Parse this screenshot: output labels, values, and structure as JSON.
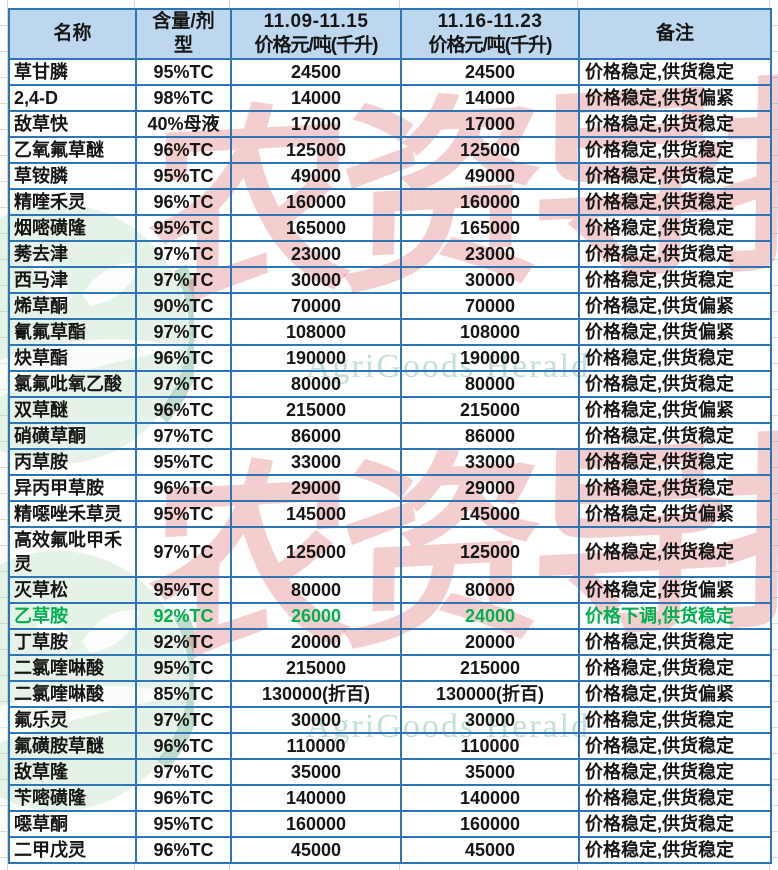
{
  "table": {
    "headers": {
      "name": "名称",
      "spec": "含量/剂型",
      "week1": {
        "period": "11.09-11.15",
        "unit": "价格元/吨(千升)"
      },
      "week2": {
        "period": "11.16-11.23",
        "unit": "价格元/吨(千升)"
      },
      "note": "备注"
    },
    "rows": [
      {
        "name": "草甘膦",
        "spec": "95%TC",
        "price_w1": "24500",
        "price_w2": "24500",
        "note": "价格稳定,供货稳定"
      },
      {
        "name": "2,4-D",
        "spec": "98%TC",
        "price_w1": "14000",
        "price_w2": "14000",
        "note": "价格稳定,供货偏紧"
      },
      {
        "name": "敌草快",
        "spec": "40%母液",
        "price_w1": "17000",
        "price_w2": "17000",
        "note": "价格稳定,供货稳定"
      },
      {
        "name": "乙氧氟草醚",
        "spec": "96%TC",
        "price_w1": "125000",
        "price_w2": "125000",
        "note": "价格稳定,供货稳定"
      },
      {
        "name": "草铵膦",
        "spec": "95%TC",
        "price_w1": "49000",
        "price_w2": "49000",
        "note": "价格稳定,供货稳定"
      },
      {
        "name": "精喹禾灵",
        "spec": "96%TC",
        "price_w1": "160000",
        "price_w2": "160000",
        "note": "价格稳定,供货稳定"
      },
      {
        "name": "烟嘧磺隆",
        "spec": "95%TC",
        "price_w1": "165000",
        "price_w2": "165000",
        "note": "价格稳定,供货稳定"
      },
      {
        "name": "莠去津",
        "spec": "97%TC",
        "price_w1": "23000",
        "price_w2": "23000",
        "note": "价格稳定,供货稳定"
      },
      {
        "name": "西马津",
        "spec": "97%TC",
        "price_w1": "30000",
        "price_w2": "30000",
        "note": "价格稳定,供货稳定"
      },
      {
        "name": "烯草酮",
        "spec": "90%TC",
        "price_w1": "70000",
        "price_w2": "70000",
        "note": "价格稳定,供货偏紧"
      },
      {
        "name": "氰氟草酯",
        "spec": "97%TC",
        "price_w1": "108000",
        "price_w2": "108000",
        "note": "价格稳定,供货偏紧"
      },
      {
        "name": "炔草酯",
        "spec": "96%TC",
        "price_w1": "190000",
        "price_w2": "190000",
        "note": "价格稳定,供货稳定"
      },
      {
        "name": "氯氟吡氧乙酸",
        "spec": "97%TC",
        "price_w1": "80000",
        "price_w2": "80000",
        "note": "价格稳定,供货稳定"
      },
      {
        "name": "双草醚",
        "spec": "96%TC",
        "price_w1": "215000",
        "price_w2": "215000",
        "note": "价格稳定,供货偏紧"
      },
      {
        "name": "硝磺草酮",
        "spec": "97%TC",
        "price_w1": "86000",
        "price_w2": "86000",
        "note": "价格稳定,供货稳定"
      },
      {
        "name": "丙草胺",
        "spec": "95%TC",
        "price_w1": "33000",
        "price_w2": "33000",
        "note": "价格稳定,供货稳定"
      },
      {
        "name": "异丙甲草胺",
        "spec": "96%TC",
        "price_w1": "29000",
        "price_w2": "29000",
        "note": "价格稳定,供货稳定"
      },
      {
        "name": "精噁唑禾草灵",
        "spec": "95%TC",
        "price_w1": "145000",
        "price_w2": "145000",
        "note": "价格稳定,供货偏紧"
      },
      {
        "name": "高效氟吡甲禾灵",
        "spec": "97%TC",
        "price_w1": "125000",
        "price_w2": "125000",
        "note": "价格稳定,供货稳定",
        "tall": true
      },
      {
        "name": "灭草松",
        "spec": "95%TC",
        "price_w1": "80000",
        "price_w2": "80000",
        "note": "价格稳定,供货偏紧"
      },
      {
        "name": "乙草胺",
        "spec": "92%TC",
        "price_w1": "26000",
        "price_w2": "24000",
        "note": "价格下调,供货稳定",
        "highlight": "green"
      },
      {
        "name": "丁草胺",
        "spec": "92%TC",
        "price_w1": "20000",
        "price_w2": "20000",
        "note": "价格稳定,供货稳定"
      },
      {
        "name": "二氯喹啉酸",
        "spec": "95%TC",
        "price_w1": "215000",
        "price_w2": "215000",
        "note": "价格稳定,供货稳定"
      },
      {
        "name": "二氯喹啉酸",
        "spec": "85%TC",
        "price_w1": "130000(折百)",
        "price_w2": "130000(折百)",
        "note": "价格稳定,供货偏紧"
      },
      {
        "name": "氟乐灵",
        "spec": "97%TC",
        "price_w1": "30000",
        "price_w2": "30000",
        "note": "价格稳定,供货稳定"
      },
      {
        "name": "氟磺胺草醚",
        "spec": "96%TC",
        "price_w1": "110000",
        "price_w2": "110000",
        "note": "价格稳定,供货稳定"
      },
      {
        "name": "敌草隆",
        "spec": "97%TC",
        "price_w1": "35000",
        "price_w2": "35000",
        "note": "价格稳定,供货稳定"
      },
      {
        "name": "苄嘧磺隆",
        "spec": "96%TC",
        "price_w1": "140000",
        "price_w2": "140000",
        "note": "价格稳定,供货稳定"
      },
      {
        "name": "噁草酮",
        "spec": "95%TC",
        "price_w1": "160000",
        "price_w2": "160000",
        "note": "价格稳定,供货稳定"
      },
      {
        "name": "二甲戊灵",
        "spec": "96%TC",
        "price_w1": "45000",
        "price_w2": "45000",
        "note": "价格稳定,供货稳定"
      }
    ]
  },
  "watermarks": {
    "brand_cn": "农资导报",
    "brand_en": "AgriGoods Herald"
  },
  "colors": {
    "header_bg": "#BDD7EE",
    "border_blue": "#2E75B6",
    "highlight_green": "#00B050",
    "watermark_pink": "#DE6E6E",
    "watermark_teal": "#92C4BB",
    "watermark_logo_green": "#7FBF8E"
  }
}
